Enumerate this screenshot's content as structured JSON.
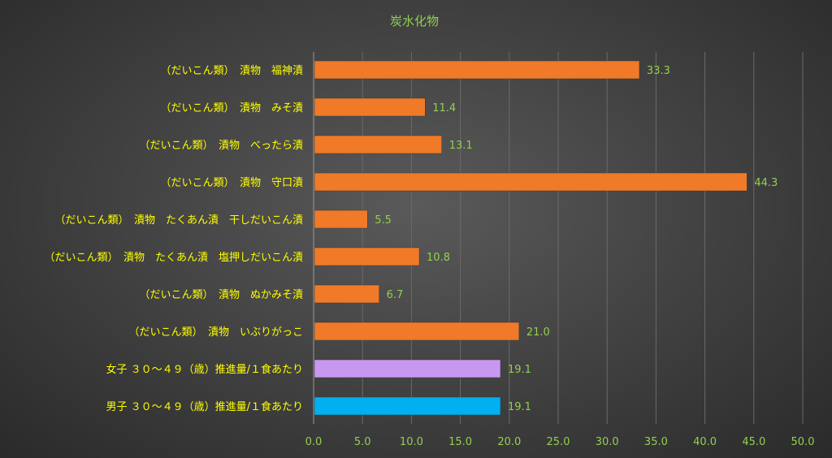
{
  "chart_data": {
    "type": "bar",
    "orientation": "horizontal",
    "title": "炭水化物",
    "categories": [
      "（だいこん類）　漬物　福神漬",
      "（だいこん類）　漬物　みそ漬",
      "（だいこん類）　漬物　べったら漬",
      "（だいこん類）　漬物　守口漬",
      "（だいこん類）　漬物　たくあん漬　干しだいこん漬",
      "（だいこん類）　漬物　たくあん漬　塩押しだいこん漬",
      "（だいこん類）　漬物　ぬかみそ漬",
      "（だいこん類）　漬物　いぶりがっこ",
      "女子 ３０～４９（歳）推進量/１食あたり",
      "男子 ３０～４９（歳）推進量/１食あたり"
    ],
    "values": [
      33.3,
      11.4,
      13.1,
      44.3,
      5.5,
      10.8,
      6.7,
      21.0,
      19.1,
      19.1
    ],
    "value_labels": [
      "33.3",
      "11.4",
      "13.1",
      "44.3",
      "5.5",
      "10.8",
      "6.7",
      "21.0",
      "19.1",
      "19.1"
    ],
    "bar_colors": [
      "#f07a28",
      "#f07a28",
      "#f07a28",
      "#f07a28",
      "#f07a28",
      "#f07a28",
      "#f07a28",
      "#f07a28",
      "#c898f0",
      "#00b0f0"
    ],
    "xlim": [
      0,
      50
    ],
    "xticks": [
      0,
      5,
      10,
      15,
      20,
      25,
      30,
      35,
      40,
      45,
      50
    ],
    "xtick_labels": [
      "0.0",
      "5.0",
      "10.0",
      "15.0",
      "20.0",
      "25.0",
      "30.0",
      "35.0",
      "40.0",
      "45.0",
      "50.0"
    ],
    "xlabel": "",
    "ylabel": "",
    "grid": "vertical",
    "legend": "none",
    "colors": {
      "title": "#92d050",
      "category_label": "#ffff00",
      "value_label": "#92d050",
      "tick_label": "#92d050",
      "grid": "#6a6a6a"
    }
  }
}
